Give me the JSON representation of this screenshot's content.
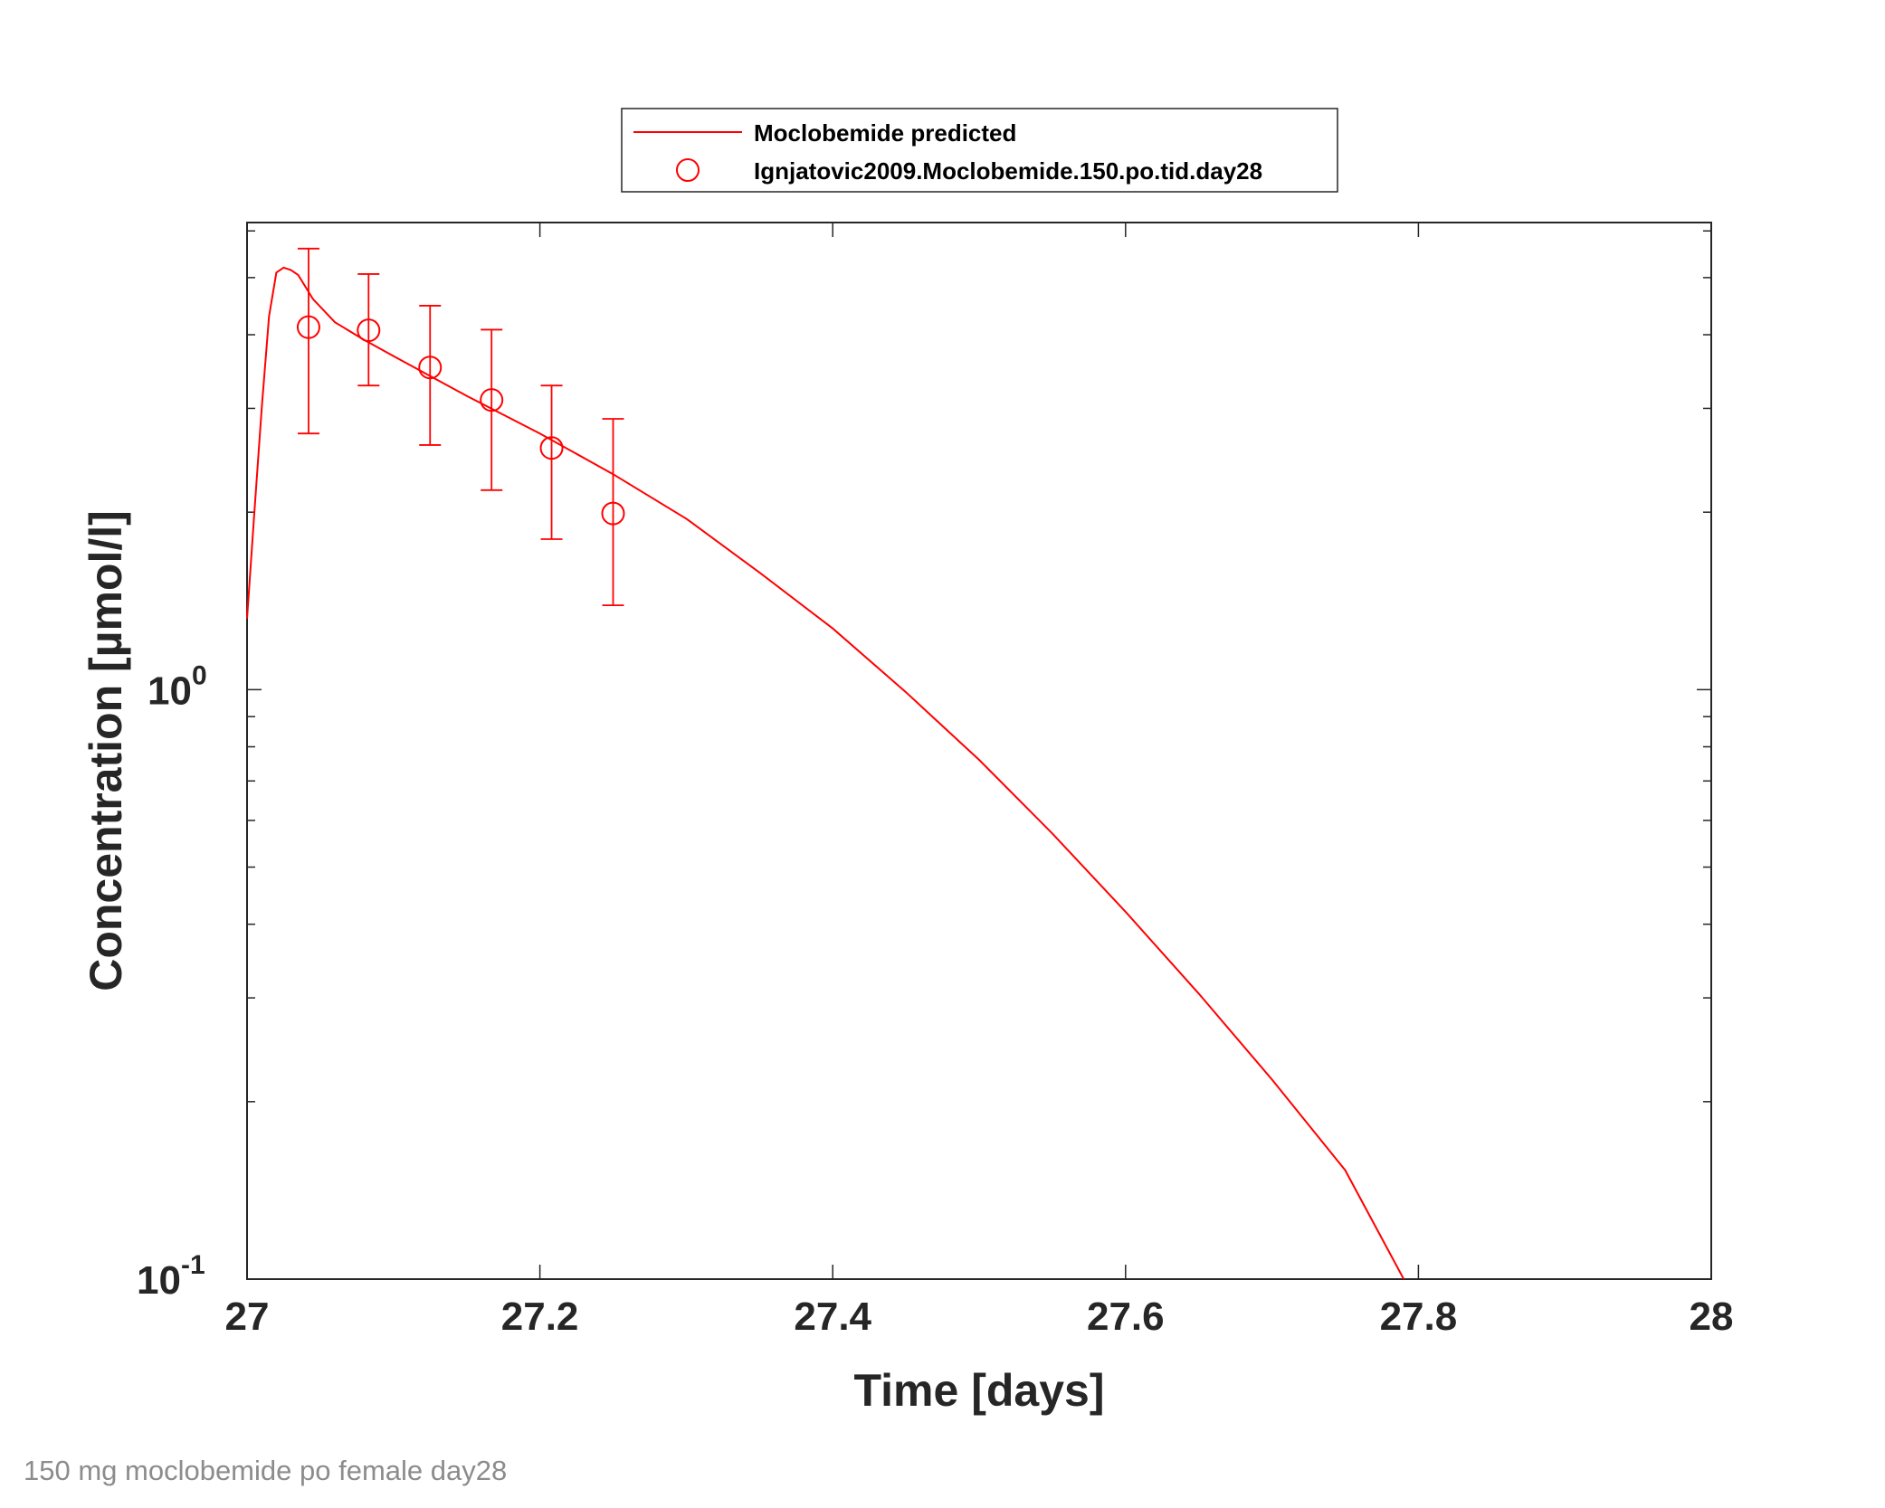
{
  "caption": "150 mg moclobemide po female day28",
  "colors": {
    "series": "#ff0000",
    "axis": "#262626",
    "caption": "#8c8c8c"
  },
  "chart_data": {
    "type": "line",
    "xlabel": "Time [days]",
    "ylabel": "Concentration [µmol/l]",
    "xlim": [
      27,
      28
    ],
    "ylim": [
      0.1,
      6.2
    ],
    "yscale": "log",
    "grid": false,
    "legend_position": "top-center",
    "x_ticks": [
      {
        "value": 27,
        "label": "27"
      },
      {
        "value": 27.2,
        "label": "27.2"
      },
      {
        "value": 27.4,
        "label": "27.4"
      },
      {
        "value": 27.6,
        "label": "27.6"
      },
      {
        "value": 27.8,
        "label": "27.8"
      },
      {
        "value": 28,
        "label": "28"
      }
    ],
    "y_ticks": [
      {
        "value": 0.1,
        "base": "10",
        "exp": "-1"
      },
      {
        "value": 1,
        "base": "10",
        "exp": "0"
      }
    ],
    "series": [
      {
        "name": "Moclobemide predicted",
        "kind": "line",
        "color": "#ff0000",
        "x": [
          27.0,
          27.005,
          27.01,
          27.015,
          27.02,
          27.025,
          27.03,
          27.035,
          27.045,
          27.06,
          27.08,
          27.1,
          27.15,
          27.2,
          27.25,
          27.3,
          27.35,
          27.4,
          27.45,
          27.5,
          27.55,
          27.6,
          27.65,
          27.7,
          27.75,
          27.79
        ],
        "y": [
          1.32,
          2.0,
          3.0,
          4.3,
          5.1,
          5.2,
          5.15,
          5.05,
          4.6,
          4.2,
          3.92,
          3.68,
          3.15,
          2.72,
          2.32,
          1.95,
          1.58,
          1.27,
          0.99,
          0.76,
          0.57,
          0.42,
          0.305,
          0.218,
          0.153,
          0.1
        ]
      },
      {
        "name": "Ignjatovic2009.Moclobemide.150.po.tid.day28",
        "kind": "scatter",
        "marker": "circle",
        "color": "#ff0000",
        "x": [
          27.042,
          27.083,
          27.125,
          27.167,
          27.208,
          27.25
        ],
        "y": [
          4.12,
          4.07,
          3.52,
          3.1,
          2.57,
          1.99
        ],
        "y_low": [
          2.72,
          3.28,
          2.6,
          2.18,
          1.8,
          1.39
        ],
        "y_high": [
          5.6,
          5.07,
          4.48,
          4.08,
          3.28,
          2.88
        ]
      }
    ]
  }
}
